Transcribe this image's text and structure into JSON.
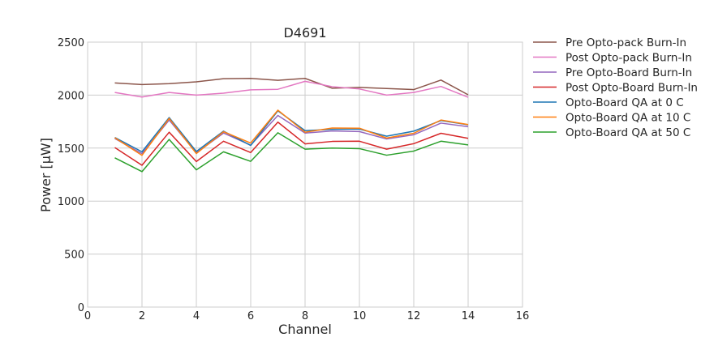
{
  "chart_data": {
    "type": "line",
    "title": "D4691",
    "xlabel": "Channel",
    "ylabel": "Power [μW]",
    "xlim": [
      0,
      16
    ],
    "ylim": [
      0,
      2500
    ],
    "xticks": [
      0,
      2,
      4,
      6,
      8,
      10,
      12,
      14,
      16
    ],
    "yticks": [
      0,
      500,
      1000,
      1500,
      2000,
      2500
    ],
    "grid": true,
    "legend_position": "outside-right",
    "x": [
      1,
      2,
      3,
      4,
      5,
      6,
      7,
      8,
      9,
      10,
      11,
      12,
      13,
      14
    ],
    "series": [
      {
        "name": "Pre Opto-pack Burn-In",
        "color": "#8c564b",
        "values": [
          2115,
          2100,
          2108,
          2125,
          2155,
          2158,
          2140,
          2158,
          2065,
          2073,
          2062,
          2052,
          2142,
          2003
        ]
      },
      {
        "name": "Post Opto-pack Burn-In",
        "color": "#e377c2",
        "values": [
          2025,
          1982,
          2025,
          2000,
          2018,
          2050,
          2055,
          2130,
          2080,
          2058,
          2000,
          2025,
          2082,
          1980
        ]
      },
      {
        "name": "Pre Opto-Board Burn-In",
        "color": "#9467bd",
        "values": [
          1590,
          1448,
          1765,
          1455,
          1642,
          1528,
          1808,
          1642,
          1662,
          1656,
          1586,
          1626,
          1736,
          1702
        ]
      },
      {
        "name": "Post Opto-Board Burn-In",
        "color": "#d62728",
        "values": [
          1505,
          1338,
          1650,
          1373,
          1565,
          1458,
          1745,
          1540,
          1563,
          1565,
          1490,
          1542,
          1640,
          1592
        ]
      },
      {
        "name": "Opto-Board QA at 0 C",
        "color": "#1f77b4",
        "values": [
          1600,
          1465,
          1788,
          1468,
          1660,
          1525,
          1852,
          1665,
          1677,
          1680,
          1612,
          1660,
          1760,
          1720
        ]
      },
      {
        "name": "Opto-Board QA at 10 C",
        "color": "#ff7f0e",
        "values": [
          1598,
          1432,
          1780,
          1448,
          1655,
          1548,
          1858,
          1650,
          1690,
          1688,
          1595,
          1640,
          1765,
          1722
        ]
      },
      {
        "name": "Opto-Board QA at 50 C",
        "color": "#2ca02c",
        "values": [
          1408,
          1278,
          1582,
          1295,
          1465,
          1375,
          1645,
          1490,
          1500,
          1495,
          1433,
          1472,
          1565,
          1530
        ]
      }
    ]
  }
}
